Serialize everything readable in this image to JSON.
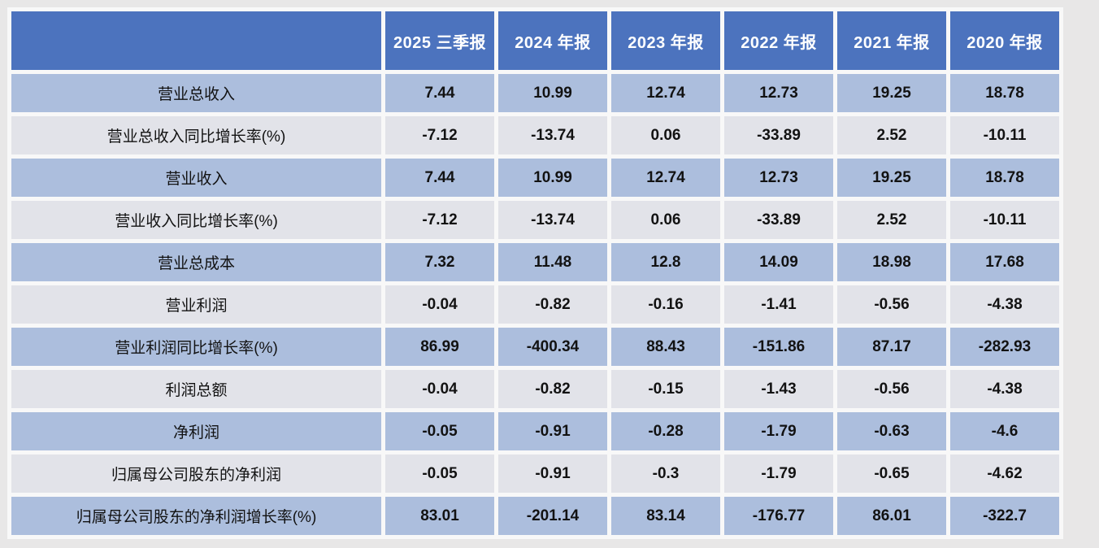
{
  "colors": {
    "page_background": "#e8e7e7",
    "cell_gap": "#f8f8f8",
    "header_background": "#4c73be",
    "header_text": "#ffffff",
    "row_blue_background": "#acbedd",
    "row_light_background": "#e2e3e9",
    "cell_text": "#121212"
  },
  "chart_data": {
    "type": "table",
    "columns": [
      "",
      "2025 三季报",
      "2024 年报",
      "2023 年报",
      "2022 年报",
      "2021 年报",
      "2020 年报"
    ],
    "rows": [
      {
        "metric": "营业总收入",
        "values": [
          7.44,
          10.99,
          12.74,
          12.73,
          19.25,
          18.78
        ]
      },
      {
        "metric": "营业总收入同比增长率(%)",
        "values": [
          -7.12,
          -13.74,
          0.06,
          -33.89,
          2.52,
          -10.11
        ]
      },
      {
        "metric": "营业收入",
        "values": [
          7.44,
          10.99,
          12.74,
          12.73,
          19.25,
          18.78
        ]
      },
      {
        "metric": "营业收入同比增长率(%)",
        "values": [
          -7.12,
          -13.74,
          0.06,
          -33.89,
          2.52,
          -10.11
        ]
      },
      {
        "metric": "营业总成本",
        "values": [
          7.32,
          11.48,
          12.8,
          14.09,
          18.98,
          17.68
        ]
      },
      {
        "metric": "营业利润",
        "values": [
          -0.04,
          -0.82,
          -0.16,
          -1.41,
          -0.56,
          -4.38
        ]
      },
      {
        "metric": "营业利润同比增长率(%)",
        "values": [
          86.99,
          -400.34,
          88.43,
          -151.86,
          87.17,
          -282.93
        ]
      },
      {
        "metric": "利润总额",
        "values": [
          -0.04,
          -0.82,
          -0.15,
          -1.43,
          -0.56,
          -4.38
        ]
      },
      {
        "metric": "净利润",
        "values": [
          -0.05,
          -0.91,
          -0.28,
          -1.79,
          -0.63,
          -4.6
        ]
      },
      {
        "metric": "归属母公司股东的净利润",
        "values": [
          -0.05,
          -0.91,
          -0.3,
          -1.79,
          -0.65,
          -4.62
        ]
      },
      {
        "metric": "归属母公司股东的净利润增长率(%)",
        "values": [
          83.01,
          -201.14,
          83.14,
          -176.77,
          86.01,
          -322.7
        ]
      }
    ]
  }
}
